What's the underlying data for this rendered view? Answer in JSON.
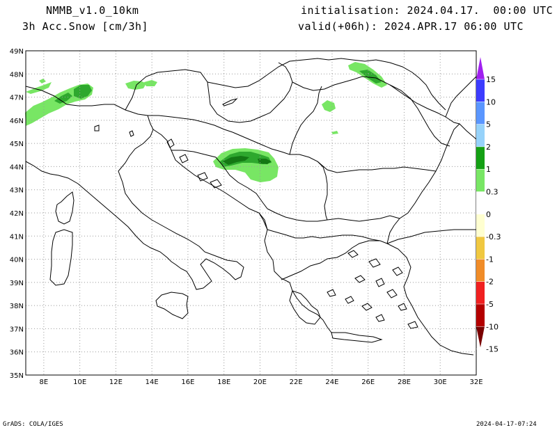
{
  "header": {
    "model": "NMMB_v1.0_10km",
    "field": "3h Acc.Snow [cm/3h]",
    "init": "initialisation: 2024.04.17.  00:00 UTC",
    "valid": "valid(+06h): 2024.APR.17 06:00 UTC"
  },
  "footer": {
    "credit": "GrADS: COLA/IGES",
    "timestamp": "2024-04-17-07:24"
  },
  "map": {
    "lon_range": [
      7,
      32
    ],
    "lat_range": [
      35,
      49
    ],
    "lon_labels": [
      "8E",
      "10E",
      "12E",
      "14E",
      "16E",
      "18E",
      "20E",
      "22E",
      "24E",
      "26E",
      "28E",
      "30E",
      "32E"
    ],
    "lat_labels": [
      "49N",
      "48N",
      "47N",
      "46N",
      "45N",
      "44N",
      "43N",
      "42N",
      "41N",
      "40N",
      "39N",
      "38N",
      "37N",
      "36N",
      "35N"
    ],
    "grid": true
  },
  "legend": {
    "labels": [
      "15",
      "10",
      "5",
      "2",
      "1",
      "0.3",
      "0",
      "-0.3",
      "-1",
      "-2",
      "-5",
      "-10",
      "-15"
    ],
    "colors": [
      "#a020f0",
      "#3c3cff",
      "#5a96ff",
      "#96d2fa",
      "#14a014",
      "#78e664",
      "#ffffff",
      "#ffffd0",
      "#f0c840",
      "#f08c28",
      "#f02020",
      "#b40000",
      "#7a0000"
    ]
  },
  "snow_colors": {
    "light": "#78e664",
    "mid": "#2ea82e",
    "dark": "#147814"
  }
}
